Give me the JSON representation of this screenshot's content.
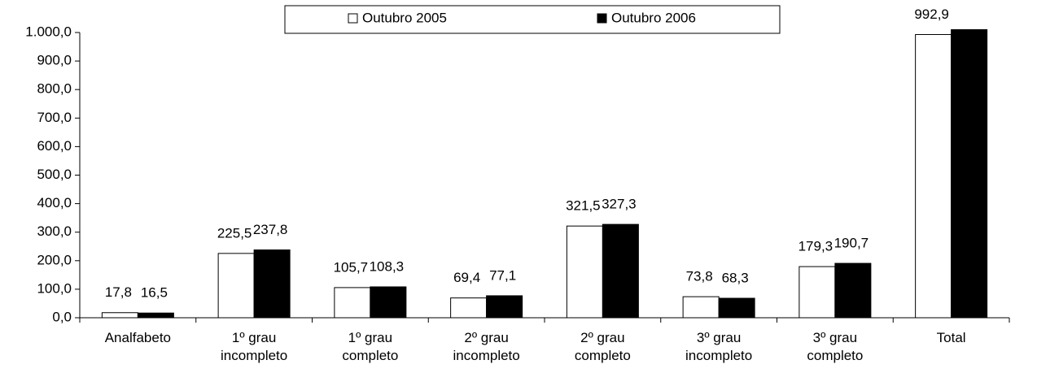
{
  "chart_data": {
    "type": "bar",
    "categories": [
      "Analfabeto",
      "1º grau incompleto",
      "1º grau completo",
      "2º grau incompleto",
      "2º grau completo",
      "3º grau incompleto",
      "3º grau completo",
      "Total"
    ],
    "series": [
      {
        "name": "Outubro 2005",
        "color": "#ffffff",
        "values": [
          17.8,
          225.5,
          105.7,
          69.4,
          321.5,
          73.8,
          179.3,
          992.9
        ],
        "value_labels": [
          "17,8",
          "225,5",
          "105,7",
          "69,4",
          "321,5",
          "73,8",
          "179,3",
          "992,9"
        ]
      },
      {
        "name": "Outubro 2006",
        "color": "#000000",
        "values": [
          16.5,
          237.8,
          108.3,
          77.1,
          327.3,
          68.3,
          190.7,
          1010
        ],
        "value_labels": [
          "16,5",
          "237,8",
          "108,3",
          "77,1",
          "327,3",
          "68,3",
          "190,7",
          null
        ]
      }
    ],
    "ylim": [
      0,
      1000
    ],
    "yticks": [
      {
        "value": 0,
        "label": "0,0"
      },
      {
        "value": 100,
        "label": "100,0"
      },
      {
        "value": 200,
        "label": "200,0"
      },
      {
        "value": 300,
        "label": "300,0"
      },
      {
        "value": 400,
        "label": "400,0"
      },
      {
        "value": 500,
        "label": "500,0"
      },
      {
        "value": 600,
        "label": "600,0"
      },
      {
        "value": 700,
        "label": "700,0"
      },
      {
        "value": 800,
        "label": "800,0"
      },
      {
        "value": 900,
        "label": "900,0"
      },
      {
        "value": 1000,
        "label": "1.000,0"
      }
    ],
    "legend": "top"
  }
}
